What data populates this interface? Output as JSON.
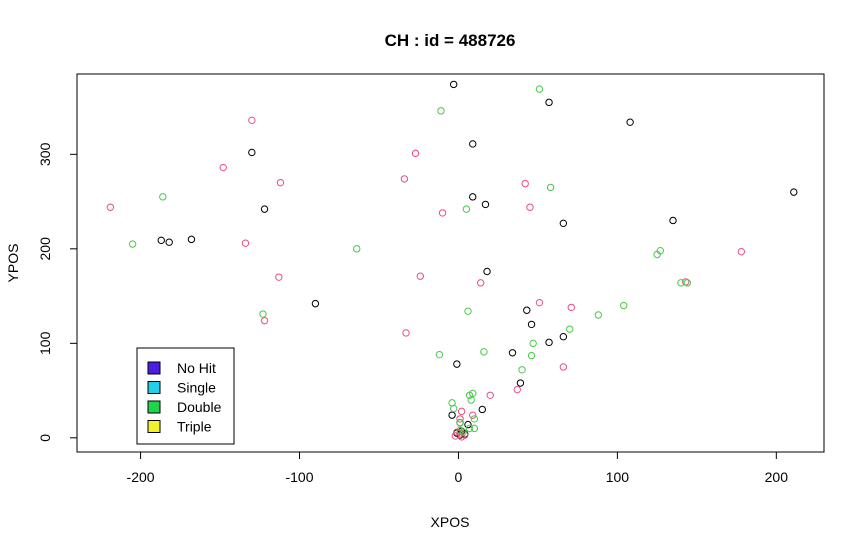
{
  "chart_data": {
    "type": "scatter",
    "title": "CH  : id = 488726",
    "xlabel": "XPOS",
    "ylabel": "YPOS",
    "xlim": [
      -240,
      230
    ],
    "ylim": [
      -15,
      385
    ],
    "xticks": [
      -200,
      -100,
      0,
      100,
      200
    ],
    "yticks": [
      0,
      100,
      200,
      300
    ],
    "series": [
      {
        "name": "black",
        "color": "#000000",
        "points": [
          [
            -3,
            374
          ],
          [
            9,
            311
          ],
          [
            -130,
            302
          ],
          [
            9,
            255
          ],
          [
            17,
            247
          ],
          [
            -122,
            242
          ],
          [
            -187,
            209
          ],
          [
            -182,
            207
          ],
          [
            -168,
            210
          ],
          [
            66,
            227
          ],
          [
            135,
            230
          ],
          [
            108,
            334
          ],
          [
            57,
            355
          ],
          [
            211,
            260
          ],
          [
            18,
            176
          ],
          [
            -90,
            142
          ],
          [
            43,
            135
          ],
          [
            46,
            120
          ],
          [
            57,
            101
          ],
          [
            66,
            107
          ],
          [
            34,
            90
          ],
          [
            -1,
            78
          ],
          [
            39,
            58
          ],
          [
            15,
            30
          ],
          [
            -4,
            24
          ],
          [
            1,
            16
          ],
          [
            6,
            14
          ],
          [
            2,
            7
          ],
          [
            4,
            4
          ],
          [
            1,
            3
          ],
          [
            -1,
            5
          ]
        ]
      },
      {
        "name": "red",
        "color": "#e8507a",
        "points": [
          [
            -130,
            336
          ],
          [
            -148,
            286
          ],
          [
            -27,
            301
          ],
          [
            -112,
            270
          ],
          [
            -34,
            274
          ],
          [
            -219,
            244
          ],
          [
            42,
            269
          ],
          [
            45,
            244
          ],
          [
            -10,
            238
          ],
          [
            -134,
            206
          ],
          [
            -113,
            170
          ],
          [
            -24,
            171
          ],
          [
            178,
            197
          ],
          [
            14,
            164
          ],
          [
            143,
            165
          ],
          [
            51,
            143
          ],
          [
            71,
            138
          ],
          [
            -122,
            124
          ],
          [
            -33,
            111
          ],
          [
            66,
            75
          ],
          [
            37,
            51
          ],
          [
            20,
            45
          ],
          [
            2,
            28
          ],
          [
            9,
            24
          ],
          [
            1,
            20
          ],
          [
            -1,
            6
          ],
          [
            4,
            3
          ],
          [
            -2,
            2
          ],
          [
            2,
            1
          ],
          [
            1,
            5
          ]
        ]
      },
      {
        "name": "green",
        "color": "#4cc74c",
        "points": [
          [
            51,
            369
          ],
          [
            -11,
            346
          ],
          [
            58,
            265
          ],
          [
            -186,
            255
          ],
          [
            5,
            242
          ],
          [
            -205,
            205
          ],
          [
            -64,
            200
          ],
          [
            125,
            194
          ],
          [
            127,
            198
          ],
          [
            140,
            164
          ],
          [
            144,
            164
          ],
          [
            6,
            134
          ],
          [
            -123,
            131
          ],
          [
            104,
            140
          ],
          [
            88,
            130
          ],
          [
            70,
            115
          ],
          [
            47,
            100
          ],
          [
            16,
            91
          ],
          [
            -12,
            88
          ],
          [
            46,
            87
          ],
          [
            40,
            72
          ],
          [
            9,
            47
          ],
          [
            7,
            45
          ],
          [
            8,
            40
          ],
          [
            -4,
            37
          ],
          [
            -3,
            31
          ],
          [
            10,
            20
          ],
          [
            1,
            16
          ],
          [
            7,
            10
          ],
          [
            10,
            10
          ],
          [
            3,
            6
          ],
          [
            1,
            8
          ]
        ]
      }
    ],
    "legend": {
      "position": "bottom-left",
      "entries": [
        {
          "label": "No Hit",
          "color": "#4b1ee6"
        },
        {
          "label": "Single",
          "color": "#22cfe8"
        },
        {
          "label": "Double",
          "color": "#22d44a"
        },
        {
          "label": "Triple",
          "color": "#f2f22a"
        }
      ]
    }
  }
}
